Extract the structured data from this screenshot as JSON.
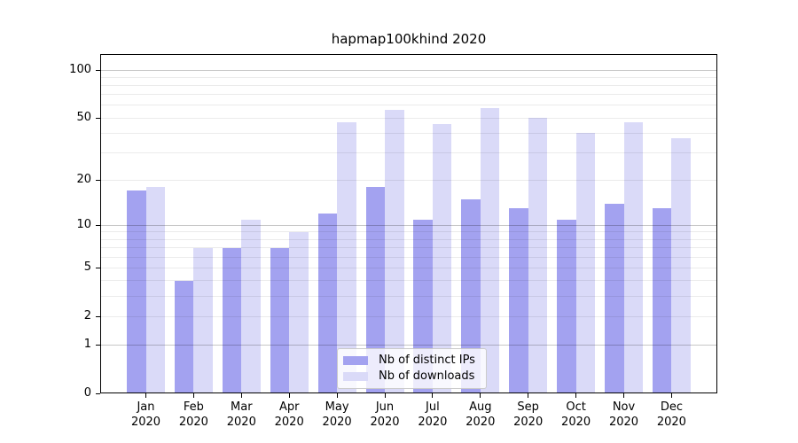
{
  "title": "hapmap100khind 2020",
  "colors": {
    "background": "#ffffff",
    "axis": "#000000",
    "distinct_ips_bar": "#a3a2f0",
    "downloads_bar": "#dadaf8",
    "gridline_major": "rgba(0,0,0,0.22)",
    "gridline_minor": "rgba(0,0,0,0.08)"
  },
  "legend": {
    "items": [
      {
        "label": "Nb of distinct IPs",
        "color": "#a3a2f0"
      },
      {
        "label": "Nb of downloads",
        "color": "#dadaf8"
      }
    ]
  },
  "chart_data": {
    "type": "bar",
    "title": "hapmap100khind 2020",
    "xlabel": "",
    "ylabel": "",
    "scale": "log1p",
    "ylim": [
      0,
      126
    ],
    "yticks": [
      0,
      1,
      2,
      5,
      10,
      20,
      50,
      100
    ],
    "gridlines_major": [
      1,
      10,
      100
    ],
    "gridlines_minor": [
      2,
      3,
      4,
      5,
      6,
      7,
      8,
      9,
      20,
      30,
      40,
      50,
      60,
      70,
      80,
      90
    ],
    "legend_position": "lower center-right inside plot",
    "categories": [
      [
        "Jan",
        "2020"
      ],
      [
        "Feb",
        "2020"
      ],
      [
        "Mar",
        "2020"
      ],
      [
        "Apr",
        "2020"
      ],
      [
        "May",
        "2020"
      ],
      [
        "Jun",
        "2020"
      ],
      [
        "Jul",
        "2020"
      ],
      [
        "Aug",
        "2020"
      ],
      [
        "Sep",
        "2020"
      ],
      [
        "Oct",
        "2020"
      ],
      [
        "Nov",
        "2020"
      ],
      [
        "Dec",
        "2020"
      ]
    ],
    "series": [
      {
        "name": "Nb of distinct IPs",
        "color": "#a3a2f0",
        "values": [
          17,
          4,
          7,
          7,
          12,
          18,
          11,
          15,
          13,
          11,
          14,
          13
        ]
      },
      {
        "name": "Nb of downloads",
        "color": "#dadaf8",
        "values": [
          18,
          7,
          11,
          9,
          47,
          56,
          46,
          58,
          50,
          40,
          47,
          37
        ]
      }
    ]
  }
}
